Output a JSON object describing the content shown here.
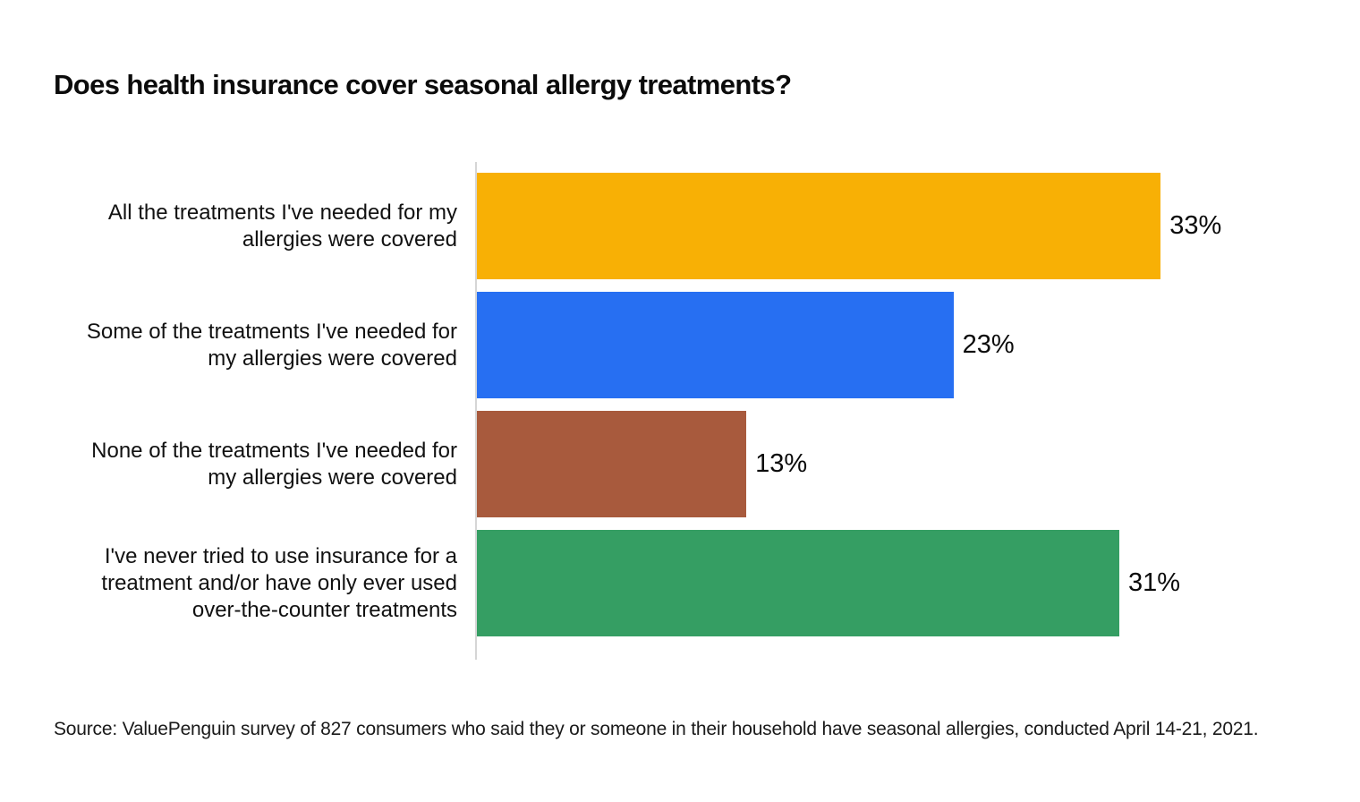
{
  "title": "Does health insurance cover seasonal allergy treatments?",
  "source": "Source: ValuePenguin survey of 827 consumers who said they or someone in their household have seasonal allergies, conducted April 14-21, 2021.",
  "colors": {
    "axis_line": "#d6d6d6",
    "text": "#111111",
    "background": "#ffffff"
  },
  "chart_data": {
    "type": "bar",
    "orientation": "horizontal",
    "title": "Does health insurance cover seasonal allergy treatments?",
    "categories": [
      "All the treatments I've needed for my allergies were covered",
      "Some of the treatments I've needed for my allergies were covered",
      "None of the treatments I've needed for my allergies were covered",
      "I've never tried to use insurance for a treatment and/or have only ever used over-the-counter treatments"
    ],
    "category_lines": [
      [
        "All the treatments I've needed for my",
        "allergies were covered"
      ],
      [
        "Some of the treatments I've needed for",
        "my allergies were covered"
      ],
      [
        "None of the treatments I've needed for",
        "my allergies were covered"
      ],
      [
        "I've never tried to use insurance for a",
        "treatment and/or have only ever used",
        "over-the-counter treatments"
      ]
    ],
    "values": [
      33,
      23,
      13,
      31
    ],
    "value_labels": [
      "33%",
      "23%",
      "13%",
      "31%"
    ],
    "bar_colors": [
      "#F8B005",
      "#276FF2",
      "#A85A3D",
      "#359E63"
    ],
    "xlabel": "",
    "ylabel": "",
    "xlim": [
      0,
      40
    ],
    "grid": false,
    "legend": "none",
    "data_labels": "outside-end"
  }
}
